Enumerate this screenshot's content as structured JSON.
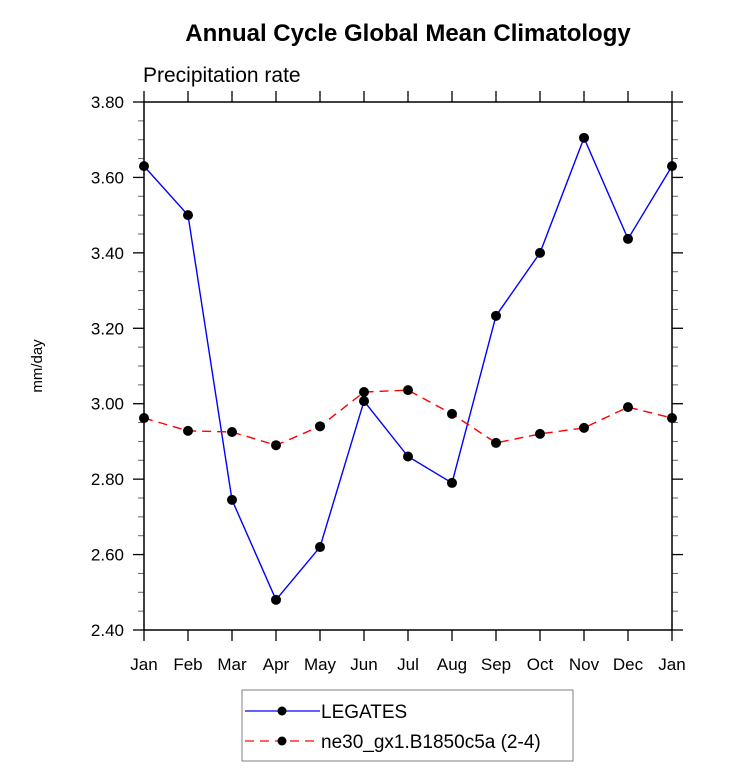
{
  "chart_data": {
    "type": "line",
    "title": "Annual Cycle Global Mean Climatology",
    "subtitle": "Precipitation rate",
    "xlabel": "",
    "ylabel": "mm/day",
    "categories": [
      "Jan",
      "Feb",
      "Mar",
      "Apr",
      "May",
      "Jun",
      "Jul",
      "Aug",
      "Sep",
      "Oct",
      "Nov",
      "Dec",
      "Jan"
    ],
    "ylim": [
      2.4,
      3.8
    ],
    "yticks": [
      "2.40",
      "2.60",
      "2.80",
      "3.00",
      "3.20",
      "3.40",
      "3.60",
      "3.80"
    ],
    "ytick_values": [
      2.4,
      2.6,
      2.8,
      3.0,
      3.2,
      3.4,
      3.6,
      3.8
    ],
    "grid": false,
    "legend_position": "bottom-center",
    "series": [
      {
        "name": "LEGATES",
        "color": "#0000ff",
        "dash": "solid",
        "marker": "filled-circle",
        "values": [
          3.63,
          3.5,
          2.745,
          2.48,
          2.62,
          3.007,
          2.86,
          2.79,
          3.233,
          3.4,
          3.705,
          3.437,
          3.63
        ]
      },
      {
        "name": "ne30_gx1.B1850c5a (2-4)",
        "color": "#ff0000",
        "dash": "dashed",
        "marker": "filled-circle",
        "values": [
          2.962,
          2.928,
          2.925,
          2.89,
          2.94,
          3.031,
          3.036,
          2.973,
          2.896,
          2.92,
          2.936,
          2.991,
          2.962
        ]
      }
    ]
  }
}
